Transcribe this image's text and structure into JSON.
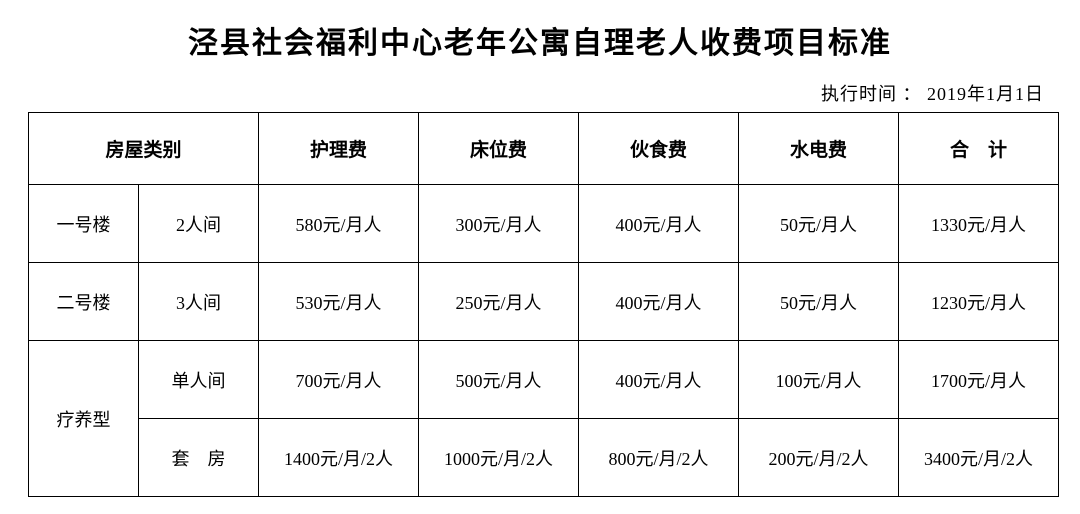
{
  "title": "泾县社会福利中心老年公寓自理老人收费项目标准",
  "subtitle_label": "执行时间",
  "subtitle_date": "2019年1月1日",
  "columns": {
    "room_category": "房屋类别",
    "nursing": "护理费",
    "bed": "床位费",
    "meal": "伙食费",
    "utility": "水电费",
    "total": "合　计"
  },
  "rows": [
    {
      "building": "一号楼",
      "room": "2人间",
      "nursing": "580元/月人",
      "bed": "300元/月人",
      "meal": "400元/月人",
      "utility": "50元/月人",
      "total": "1330元/月人",
      "rowspan": 1
    },
    {
      "building": "二号楼",
      "room": "3人间",
      "nursing": "530元/月人",
      "bed": "250元/月人",
      "meal": "400元/月人",
      "utility": "50元/月人",
      "total": "1230元/月人",
      "rowspan": 1
    },
    {
      "building": "疗养型",
      "room": "单人间",
      "nursing": "700元/月人",
      "bed": "500元/月人",
      "meal": "400元/月人",
      "utility": "100元/月人",
      "total": "1700元/月人",
      "rowspan": 2
    },
    {
      "building": "",
      "room": "套　房",
      "nursing": "1400元/月/2人",
      "bed": "1000元/月/2人",
      "meal": "800元/月/2人",
      "utility": "200元/月/2人",
      "total": "3400元/月/2人",
      "rowspan": 0
    }
  ],
  "style": {
    "border_color": "#000000",
    "background": "#ffffff",
    "font_family": "SimSun",
    "title_fontsize": 30,
    "cell_fontsize": 18,
    "header_fontsize": 19
  }
}
